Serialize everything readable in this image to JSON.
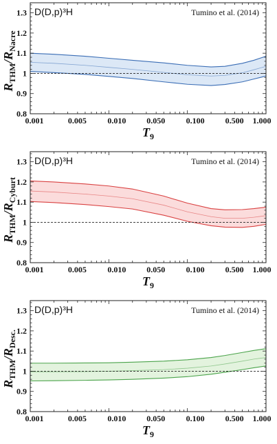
{
  "chart_data": [
    {
      "type": "area",
      "title": "D(D,p)³H",
      "annotation": "Tumino et al. (2014)",
      "xlabel": "T9",
      "ylabel": "RTHM/RNacre",
      "xscale": "log",
      "xlim": [
        0.001,
        1.0
      ],
      "ylim": [
        0.8,
        1.35
      ],
      "xticks": [
        "0.001",
        "0.005",
        "0.010",
        "0.050",
        "0.100",
        "0.500",
        "1.000"
      ],
      "yticks": [
        "0.8",
        "0.9",
        "1",
        "1.1",
        "1.2",
        "1.3"
      ],
      "reference_line": 1.0,
      "color": "#3a6db5",
      "fill": "#dce8f6",
      "x": [
        0.001,
        0.002,
        0.005,
        0.01,
        0.02,
        0.05,
        0.1,
        0.2,
        0.3,
        0.5,
        0.7,
        1.0
      ],
      "upper": [
        1.1,
        1.095,
        1.085,
        1.075,
        1.065,
        1.052,
        1.04,
        1.032,
        1.035,
        1.05,
        1.065,
        1.085
      ],
      "middle": [
        1.055,
        1.05,
        1.04,
        1.03,
        1.02,
        1.005,
        0.993,
        0.987,
        0.99,
        1.003,
        1.018,
        1.035
      ],
      "lower": [
        1.01,
        1.004,
        0.995,
        0.985,
        0.975,
        0.958,
        0.946,
        0.94,
        0.945,
        0.958,
        0.972,
        0.987
      ]
    },
    {
      "type": "area",
      "title": "D(D,p)³H",
      "annotation": "Tumino et al. (2014)",
      "xlabel": "T9",
      "ylabel": "RTHM/RCyburt",
      "xscale": "log",
      "xlim": [
        0.001,
        1.0
      ],
      "ylim": [
        0.8,
        1.35
      ],
      "xticks": [
        "0.001",
        "0.005",
        "0.010",
        "0.050",
        "0.100",
        "0.500",
        "1.000"
      ],
      "yticks": [
        "0.8",
        "0.9",
        "1",
        "1.1",
        "1.2",
        "1.3"
      ],
      "reference_line": 1.0,
      "color": "#d94040",
      "fill": "#fbdcdc",
      "x": [
        0.001,
        0.002,
        0.005,
        0.01,
        0.02,
        0.05,
        0.1,
        0.2,
        0.3,
        0.5,
        0.7,
        1.0
      ],
      "upper": [
        1.205,
        1.2,
        1.19,
        1.18,
        1.165,
        1.13,
        1.095,
        1.068,
        1.062,
        1.063,
        1.068,
        1.075
      ],
      "middle": [
        1.155,
        1.15,
        1.14,
        1.13,
        1.117,
        1.085,
        1.052,
        1.028,
        1.02,
        1.02,
        1.025,
        1.033
      ],
      "lower": [
        1.103,
        1.098,
        1.088,
        1.078,
        1.066,
        1.035,
        1.005,
        0.983,
        0.976,
        0.975,
        0.98,
        0.99
      ]
    },
    {
      "type": "area",
      "title": "D(D,p)³H",
      "annotation": "Tumino et al. (2014)",
      "xlabel": "T9",
      "ylabel": "RTHM/RDesc.",
      "xscale": "log",
      "xlim": [
        0.001,
        1.0
      ],
      "ylim": [
        0.8,
        1.35
      ],
      "xticks": [
        "0.001",
        "0.005",
        "0.010",
        "0.050",
        "0.100",
        "0.500",
        "1.000"
      ],
      "yticks": [
        "0.8",
        "0.9",
        "1",
        "1.1",
        "1.2",
        "1.3"
      ],
      "reference_line": 1.0,
      "color": "#4aa34a",
      "fill": "#e3f3de",
      "x": [
        0.001,
        0.002,
        0.005,
        0.01,
        0.02,
        0.05,
        0.1,
        0.2,
        0.3,
        0.5,
        0.7,
        1.0
      ],
      "upper": [
        1.04,
        1.04,
        1.041,
        1.042,
        1.045,
        1.05,
        1.057,
        1.068,
        1.078,
        1.093,
        1.103,
        1.112
      ],
      "middle": [
        0.997,
        0.997,
        0.998,
        1.0,
        1.003,
        1.008,
        1.015,
        1.026,
        1.036,
        1.05,
        1.06,
        1.068
      ],
      "lower": [
        0.952,
        0.953,
        0.955,
        0.957,
        0.96,
        0.966,
        0.973,
        0.985,
        0.995,
        1.008,
        1.017,
        1.026
      ]
    }
  ]
}
